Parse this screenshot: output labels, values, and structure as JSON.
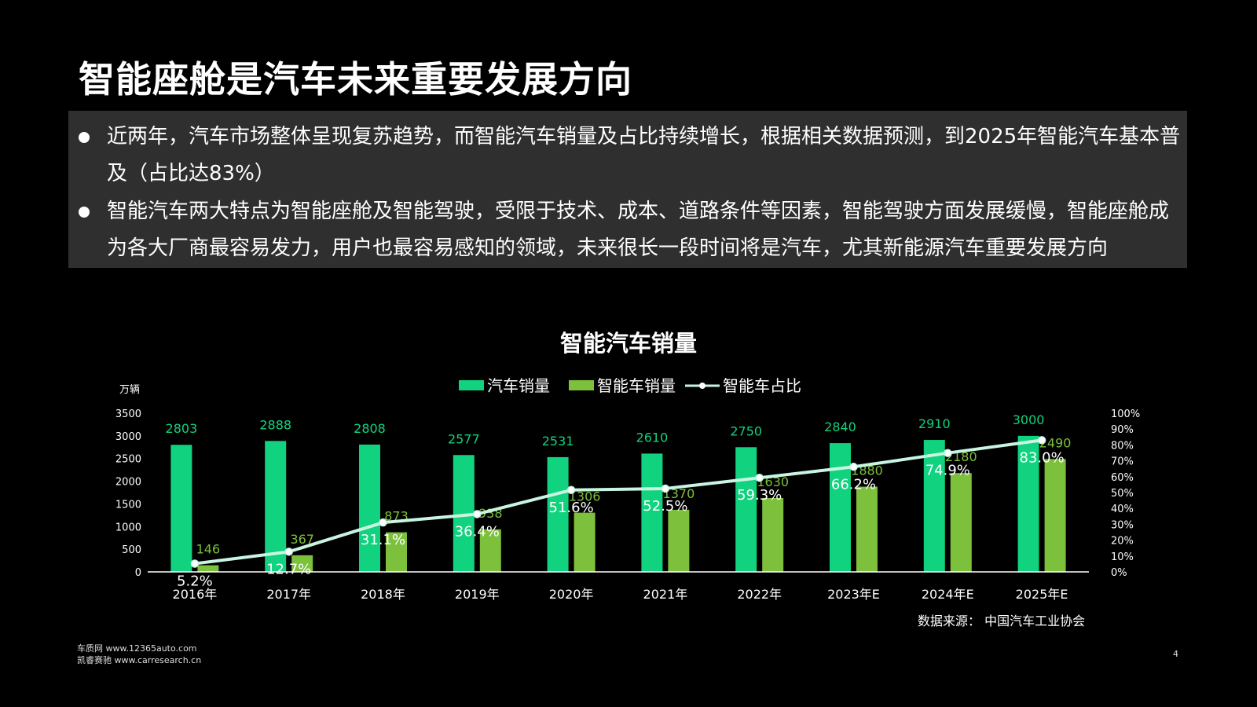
{
  "page": {
    "title": "智能座舱是汽车未来重要发展方向",
    "bullets": [
      "近两年，汽车市场整体呈现复苏趋势，而智能汽车销量及占比持续增长，根据相关数据预测，到2025年智能汽车基本普及（占比达83%）",
      "智能汽车两大特点为智能座舱及智能驾驶，受限于技术、成本、道路条件等因素，智能驾驶方面发展缓慢，智能座舱成为各大厂商最容易发力，用户也最容易感知的领域，未来很长一段时间将是汽车，尤其新能源汽车重要发展方向"
    ],
    "footer_line1": "车质网 www.12365auto.com",
    "footer_line2": "凯睿赛驰 www.carresearch.cn",
    "page_number": "4"
  },
  "chart_data": {
    "type": "bar",
    "title": "智能汽车销量",
    "left_axis_unit": "万辆",
    "categories": [
      "2016年",
      "2017年",
      "2018年",
      "2019年",
      "2020年",
      "2021年",
      "2022年",
      "2023年E",
      "2024年E",
      "2025年E"
    ],
    "series": [
      {
        "name": "汽车销量",
        "type": "bar",
        "axis": "left",
        "color": "#11d27e",
        "values": [
          2803,
          2888,
          2808,
          2577,
          2531,
          2610,
          2750,
          2840,
          2910,
          3000
        ]
      },
      {
        "name": "智能车销量",
        "type": "bar",
        "axis": "left",
        "color": "#7cc03c",
        "values": [
          146,
          367,
          873,
          938,
          1306,
          1370,
          1630,
          1880,
          2180,
          2490
        ]
      },
      {
        "name": "智能车占比",
        "type": "line",
        "axis": "right",
        "color": "#c8f5e2",
        "values": [
          5.2,
          12.7,
          31.1,
          36.4,
          51.6,
          52.5,
          59.3,
          66.2,
          74.9,
          83.0
        ],
        "labels": [
          "5.2%",
          "12.7%",
          "31.1%",
          "36.4%",
          "51.6%",
          "52.5%",
          "59.3%",
          "66.2%",
          "74.9%",
          "83.0%"
        ]
      }
    ],
    "left_axis": {
      "ylim": [
        0,
        3500
      ],
      "ticks": [
        "0",
        "500",
        "1000",
        "1500",
        "2000",
        "2500",
        "3000",
        "3500"
      ]
    },
    "right_axis": {
      "ylim": [
        0,
        100
      ],
      "ticks": [
        "0%",
        "10%",
        "20%",
        "30%",
        "40%",
        "50%",
        "60%",
        "70%",
        "80%",
        "90%",
        "100%"
      ]
    },
    "legend_position": "top-center",
    "source_note": "数据来源： 中国汽车工业协会"
  }
}
